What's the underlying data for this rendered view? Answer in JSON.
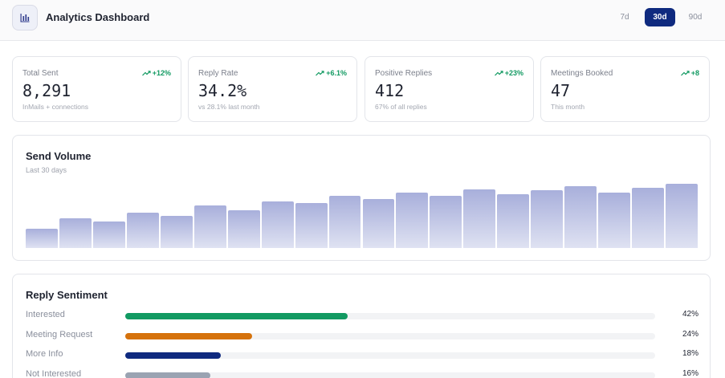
{
  "header": {
    "title": "Analytics Dashboard",
    "logo_icon": "bar-chart-icon",
    "ranges": [
      {
        "label": "7d",
        "active": false
      },
      {
        "label": "30d",
        "active": true
      },
      {
        "label": "90d",
        "active": false
      }
    ]
  },
  "kpis": [
    {
      "label": "Total Sent",
      "value": "8,291",
      "trend": "+12%",
      "sub": "InMails + connections"
    },
    {
      "label": "Reply Rate",
      "value": "34.2%",
      "trend": "+6.1%",
      "sub": "vs 28.1% last month"
    },
    {
      "label": "Positive Replies",
      "value": "412",
      "trend": "+23%",
      "sub": "67% of all replies"
    },
    {
      "label": "Meetings Booked",
      "value": "47",
      "trend": "+8",
      "sub": "This month"
    }
  ],
  "volume": {
    "title": "Send Volume",
    "subtitle": "Last 30 days"
  },
  "chart_data": {
    "type": "bar",
    "title": "Send Volume",
    "subtitle": "Last 30 days",
    "values": [
      30,
      46,
      41,
      55,
      50,
      66,
      59,
      73,
      70,
      81,
      77,
      86,
      81,
      91,
      84,
      90,
      96,
      86,
      94,
      100
    ],
    "ylim": [
      0,
      100
    ],
    "grid": false
  },
  "sentiment": {
    "title": "Reply Sentiment",
    "items": [
      {
        "label": "Interested",
        "pct": "42%",
        "value": 42,
        "color": "#129a62"
      },
      {
        "label": "Meeting Request",
        "pct": "24%",
        "value": 24,
        "color": "#d5720c"
      },
      {
        "label": "More Info",
        "pct": "18%",
        "value": 18,
        "color": "#0f2a7f"
      },
      {
        "label": "Not Interested",
        "pct": "16%",
        "value": 16,
        "color": "#9aa3b2"
      }
    ]
  },
  "colors": {
    "accent": "#0f2a7f",
    "positive": "#129a62"
  }
}
